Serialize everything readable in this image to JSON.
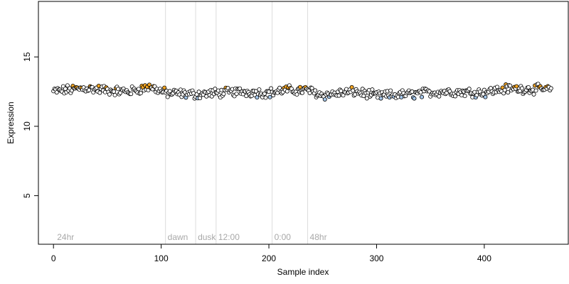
{
  "chart_data": {
    "type": "scatter",
    "xlabel": "Sample index",
    "ylabel": "Expression",
    "xlim": [
      -14,
      478
    ],
    "ylim": [
      1.5,
      19
    ],
    "xticks": [
      0,
      100,
      200,
      300,
      400
    ],
    "yticks": [
      5,
      10,
      15
    ],
    "grid": false,
    "colors": {
      "frame": "#000000",
      "vline": "#dcdcdc",
      "annotation_text": "#a8a8a8",
      "point_edge": "#000000",
      "point_default": "#ffffff",
      "point_low": "#a6c8ec",
      "point_high": "#f5a623"
    },
    "vlines": [
      {
        "x": 104,
        "label": "dawn"
      },
      {
        "x": 132,
        "label": "dusk"
      },
      {
        "x": 151,
        "label": "12:00"
      },
      {
        "x": 203,
        "label": "0:00"
      },
      {
        "x": 236,
        "label": "48hr"
      }
    ],
    "annotations": [
      {
        "x": 2,
        "label": "24hr"
      }
    ],
    "annotation_y": 2,
    "series": [
      {
        "marker": "circle",
        "anchors": [
          [
            0,
            12.5
          ],
          [
            10,
            12.6
          ],
          [
            30,
            12.75
          ],
          [
            50,
            12.6
          ],
          [
            70,
            12.5
          ],
          [
            90,
            12.85
          ],
          [
            104,
            12.4
          ],
          [
            132,
            12.3
          ],
          [
            151,
            12.4
          ],
          [
            175,
            12.5
          ],
          [
            200,
            12.4
          ],
          [
            215,
            12.6
          ],
          [
            236,
            12.6
          ],
          [
            250,
            12.25
          ],
          [
            280,
            12.5
          ],
          [
            300,
            12.2
          ],
          [
            330,
            12.3
          ],
          [
            360,
            12.5
          ],
          [
            400,
            12.45
          ],
          [
            420,
            12.7
          ],
          [
            440,
            12.7
          ],
          [
            462,
            12.65
          ]
        ],
        "count": 463
      }
    ]
  }
}
